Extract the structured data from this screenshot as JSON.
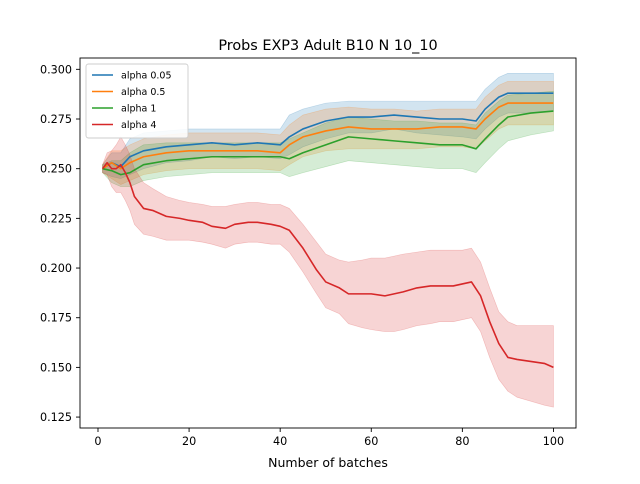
{
  "chart_data": {
    "type": "line",
    "title": "Probs EXP3 Adult B10 N 10_10",
    "xlabel": "Number of batches",
    "ylabel": "",
    "xlim": [
      -3.95,
      104.95
    ],
    "ylim": [
      0.1195,
      0.3057
    ],
    "xticks": [
      0,
      20,
      40,
      60,
      80,
      100
    ],
    "xtick_labels": [
      "0",
      "20",
      "40",
      "60",
      "80",
      "100"
    ],
    "yticks": [
      0.125,
      0.15,
      0.175,
      0.2,
      0.225,
      0.25,
      0.275,
      0.3
    ],
    "ytick_labels": [
      "0.125",
      "0.150",
      "0.175",
      "0.200",
      "0.225",
      "0.250",
      "0.275",
      "0.300"
    ],
    "grid": false,
    "legend_position": "upper-left",
    "bands": "mean ± std shaded regions",
    "series": [
      {
        "name": "alpha 0.05",
        "color": "#1f77b4",
        "x": [
          1,
          3,
          5,
          7,
          10,
          15,
          20,
          25,
          30,
          35,
          40,
          42,
          45,
          50,
          55,
          60,
          65,
          70,
          75,
          80,
          83,
          85,
          88,
          90,
          95,
          100
        ],
        "y": [
          0.25,
          0.253,
          0.251,
          0.256,
          0.259,
          0.261,
          0.262,
          0.263,
          0.262,
          0.263,
          0.262,
          0.266,
          0.27,
          0.274,
          0.276,
          0.276,
          0.277,
          0.276,
          0.275,
          0.275,
          0.274,
          0.28,
          0.286,
          0.288,
          0.288,
          0.288
        ],
        "upper": [
          0.252,
          0.258,
          0.258,
          0.265,
          0.268,
          0.269,
          0.27,
          0.27,
          0.27,
          0.27,
          0.27,
          0.277,
          0.28,
          0.283,
          0.284,
          0.284,
          0.284,
          0.284,
          0.284,
          0.284,
          0.284,
          0.29,
          0.296,
          0.298,
          0.298,
          0.298
        ],
        "lower": [
          0.248,
          0.246,
          0.245,
          0.247,
          0.25,
          0.253,
          0.254,
          0.256,
          0.255,
          0.256,
          0.255,
          0.257,
          0.261,
          0.265,
          0.268,
          0.268,
          0.27,
          0.268,
          0.267,
          0.266,
          0.265,
          0.27,
          0.276,
          0.278,
          0.278,
          0.279
        ]
      },
      {
        "name": "alpha 0.5",
        "color": "#ff7f0e",
        "x": [
          1,
          3,
          5,
          7,
          10,
          15,
          20,
          25,
          30,
          35,
          40,
          42,
          45,
          50,
          55,
          60,
          65,
          70,
          75,
          80,
          83,
          85,
          88,
          90,
          95,
          100
        ],
        "y": [
          0.25,
          0.253,
          0.25,
          0.253,
          0.256,
          0.258,
          0.259,
          0.259,
          0.259,
          0.259,
          0.258,
          0.262,
          0.266,
          0.269,
          0.271,
          0.27,
          0.27,
          0.27,
          0.271,
          0.271,
          0.27,
          0.275,
          0.281,
          0.283,
          0.283,
          0.283
        ],
        "upper": [
          0.252,
          0.259,
          0.259,
          0.262,
          0.265,
          0.267,
          0.268,
          0.268,
          0.268,
          0.268,
          0.267,
          0.272,
          0.277,
          0.28,
          0.281,
          0.28,
          0.28,
          0.279,
          0.28,
          0.28,
          0.28,
          0.286,
          0.292,
          0.294,
          0.294,
          0.294
        ],
        "lower": [
          0.248,
          0.245,
          0.242,
          0.244,
          0.247,
          0.249,
          0.25,
          0.25,
          0.25,
          0.25,
          0.249,
          0.252,
          0.256,
          0.259,
          0.26,
          0.26,
          0.26,
          0.26,
          0.261,
          0.261,
          0.26,
          0.264,
          0.27,
          0.272,
          0.272,
          0.272
        ]
      },
      {
        "name": "alpha 1",
        "color": "#2ca02c",
        "x": [
          1,
          3,
          5,
          7,
          10,
          15,
          20,
          25,
          30,
          35,
          40,
          42,
          45,
          50,
          55,
          60,
          65,
          70,
          75,
          80,
          83,
          85,
          88,
          90,
          95,
          100
        ],
        "y": [
          0.25,
          0.249,
          0.247,
          0.248,
          0.252,
          0.254,
          0.255,
          0.256,
          0.256,
          0.256,
          0.256,
          0.255,
          0.258,
          0.262,
          0.266,
          0.265,
          0.264,
          0.263,
          0.262,
          0.262,
          0.26,
          0.265,
          0.272,
          0.276,
          0.278,
          0.279
        ],
        "upper": [
          0.252,
          0.254,
          0.254,
          0.258,
          0.262,
          0.263,
          0.263,
          0.263,
          0.263,
          0.263,
          0.263,
          0.265,
          0.268,
          0.273,
          0.276,
          0.275,
          0.274,
          0.274,
          0.273,
          0.273,
          0.272,
          0.278,
          0.284,
          0.287,
          0.288,
          0.289
        ],
        "lower": [
          0.248,
          0.243,
          0.241,
          0.241,
          0.244,
          0.246,
          0.247,
          0.248,
          0.248,
          0.248,
          0.248,
          0.246,
          0.248,
          0.251,
          0.254,
          0.253,
          0.252,
          0.251,
          0.25,
          0.25,
          0.248,
          0.253,
          0.26,
          0.264,
          0.267,
          0.269
        ]
      },
      {
        "name": "alpha 4",
        "color": "#d62728",
        "x": [
          1,
          2,
          3,
          4,
          5,
          6,
          7,
          8,
          10,
          12,
          15,
          18,
          20,
          23,
          25,
          28,
          30,
          33,
          35,
          38,
          40,
          42,
          45,
          48,
          50,
          53,
          55,
          58,
          60,
          63,
          65,
          67,
          70,
          73,
          75,
          78,
          80,
          82,
          84,
          86,
          88,
          90,
          92,
          95,
          98,
          100
        ],
        "y": [
          0.25,
          0.253,
          0.25,
          0.25,
          0.252,
          0.248,
          0.243,
          0.236,
          0.23,
          0.229,
          0.226,
          0.225,
          0.224,
          0.223,
          0.221,
          0.22,
          0.222,
          0.223,
          0.223,
          0.222,
          0.221,
          0.219,
          0.21,
          0.199,
          0.193,
          0.19,
          0.187,
          0.187,
          0.187,
          0.186,
          0.187,
          0.188,
          0.19,
          0.191,
          0.191,
          0.191,
          0.192,
          0.193,
          0.186,
          0.173,
          0.162,
          0.155,
          0.154,
          0.153,
          0.152,
          0.15
        ],
        "upper": [
          0.252,
          0.258,
          0.259,
          0.262,
          0.266,
          0.262,
          0.257,
          0.25,
          0.243,
          0.24,
          0.236,
          0.234,
          0.233,
          0.232,
          0.231,
          0.231,
          0.232,
          0.233,
          0.233,
          0.232,
          0.232,
          0.23,
          0.222,
          0.213,
          0.207,
          0.204,
          0.203,
          0.204,
          0.205,
          0.205,
          0.206,
          0.207,
          0.208,
          0.209,
          0.209,
          0.209,
          0.209,
          0.21,
          0.203,
          0.19,
          0.178,
          0.173,
          0.171,
          0.171,
          0.171,
          0.171
        ],
        "lower": [
          0.248,
          0.247,
          0.241,
          0.238,
          0.238,
          0.234,
          0.229,
          0.222,
          0.217,
          0.216,
          0.214,
          0.214,
          0.214,
          0.213,
          0.212,
          0.21,
          0.212,
          0.213,
          0.213,
          0.212,
          0.212,
          0.208,
          0.198,
          0.187,
          0.18,
          0.177,
          0.172,
          0.17,
          0.169,
          0.168,
          0.168,
          0.169,
          0.171,
          0.172,
          0.173,
          0.173,
          0.174,
          0.175,
          0.168,
          0.155,
          0.144,
          0.138,
          0.135,
          0.133,
          0.131,
          0.13
        ]
      }
    ]
  }
}
